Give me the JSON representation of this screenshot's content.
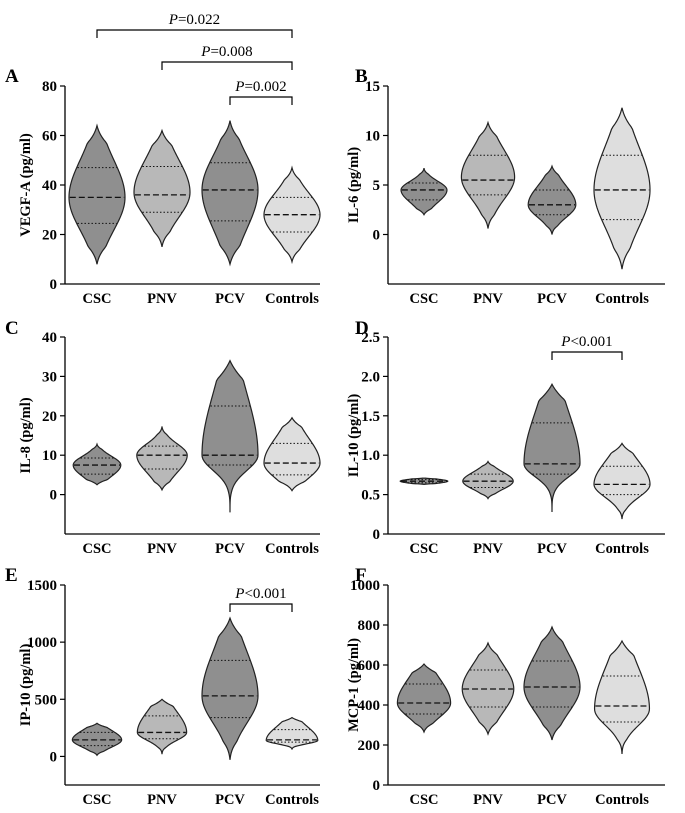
{
  "colors": {
    "CSC": "#8f8f8f",
    "PNV": "#b8b8b8",
    "PCV": "#8f8f8f",
    "Controls": "#dedede"
  },
  "chart_data": [
    {
      "type": "violin",
      "panel": "A",
      "ylabel": "VEGF-A (pg/ml)",
      "ylim": [
        0,
        80
      ],
      "yticks": [
        0,
        20,
        40,
        60,
        80
      ],
      "yticklabels": [
        "0",
        "20",
        "40",
        "60",
        "80"
      ],
      "categories": [
        "CSC",
        "PNV",
        "PCV",
        "Controls"
      ],
      "groups": [
        {
          "name": "CSC",
          "min": 8,
          "max": 64,
          "q1": 24.5,
          "median": 35,
          "q3": 47,
          "mode": 35,
          "width": 1.0
        },
        {
          "name": "PNV",
          "min": 15,
          "max": 62,
          "q1": 29,
          "median": 36,
          "q3": 47.5,
          "mode": 37,
          "width": 1.0
        },
        {
          "name": "PCV",
          "min": 8,
          "max": 66,
          "q1": 25.5,
          "median": 38,
          "q3": 49,
          "mode": 38,
          "width": 1.0
        },
        {
          "name": "Controls",
          "min": 9,
          "max": 47,
          "q1": 21,
          "median": 28,
          "q3": 35,
          "mode": 28,
          "width": 1.0
        }
      ],
      "annotations": [
        {
          "label_italic": "P",
          "label_rest": "=0.022",
          "from": 0,
          "to": 3,
          "level": 0
        },
        {
          "label_italic": "P",
          "label_rest": "=0.008",
          "from": 1,
          "to": 3,
          "level": 1
        },
        {
          "label_italic": "P",
          "label_rest": "=0.002",
          "from": 2,
          "to": 3,
          "level": 2
        }
      ]
    },
    {
      "type": "violin",
      "panel": "B",
      "ylabel": "IL-6 (pg/ml)",
      "ylim": [
        -5,
        15
      ],
      "yticks": [
        0,
        5,
        10,
        15
      ],
      "yticklabels": [
        "0",
        "5",
        "10",
        "15"
      ],
      "categories": [
        "CSC",
        "PNV",
        "PCV",
        "Controls"
      ],
      "groups": [
        {
          "name": "CSC",
          "min": 2,
          "max": 6.7,
          "q1": 3.5,
          "median": 4.5,
          "q3": 5.2,
          "mode": 4.5,
          "width": 0.82
        },
        {
          "name": "PNV",
          "min": 0.6,
          "max": 11.3,
          "q1": 4,
          "median": 5.5,
          "q3": 8,
          "mode": 5.8,
          "width": 0.95
        },
        {
          "name": "PCV",
          "min": 0,
          "max": 6.9,
          "q1": 2,
          "median": 3,
          "q3": 4.5,
          "mode": 3,
          "width": 0.85
        },
        {
          "name": "Controls",
          "min": -3.5,
          "max": 12.8,
          "q1": 1.5,
          "median": 4.5,
          "q3": 8,
          "mode": 4.5,
          "width": 1.0
        }
      ],
      "annotations": []
    },
    {
      "type": "violin",
      "panel": "C",
      "ylabel": "IL-8 (pg/ml)",
      "ylim": [
        -10,
        40
      ],
      "yticks": [
        0,
        10,
        20,
        30,
        40
      ],
      "yticklabels": [
        "0",
        "10",
        "20",
        "30",
        "40"
      ],
      "categories": [
        "CSC",
        "PNV",
        "PCV",
        "Controls"
      ],
      "groups": [
        {
          "name": "CSC",
          "min": 2.5,
          "max": 12.8,
          "q1": 5.2,
          "median": 7.5,
          "q3": 9.3,
          "mode": 7.5,
          "width": 0.85
        },
        {
          "name": "PNV",
          "min": 1.2,
          "max": 17.3,
          "q1": 6.5,
          "median": 10,
          "q3": 12.3,
          "mode": 10,
          "width": 0.9
        },
        {
          "name": "PCV",
          "min": -4.5,
          "max": 34,
          "q1": 7.5,
          "median": 10,
          "q3": 22.5,
          "mode": 10,
          "width": 1.0
        },
        {
          "name": "Controls",
          "min": 1,
          "max": 19.5,
          "q1": 5,
          "median": 8,
          "q3": 13,
          "mode": 8,
          "width": 1.0
        }
      ],
      "annotations": []
    },
    {
      "type": "violin",
      "panel": "D",
      "ylabel": "IL-10 (pg/ml)",
      "ylim": [
        0,
        2.5
      ],
      "yticks": [
        0,
        0.5,
        1.0,
        1.5,
        2.0,
        2.5
      ],
      "yticklabels": [
        "0",
        "0.5",
        "1.0",
        "1.5",
        "2.0",
        "2.5"
      ],
      "categories": [
        "CSC",
        "PNV",
        "PCV",
        "Controls"
      ],
      "groups": [
        {
          "name": "CSC",
          "min": 0.63,
          "max": 0.71,
          "q1": 0.65,
          "median": 0.67,
          "q3": 0.69,
          "mode": 0.67,
          "width": 0.85
        },
        {
          "name": "PNV",
          "min": 0.45,
          "max": 0.92,
          "q1": 0.59,
          "median": 0.67,
          "q3": 0.76,
          "mode": 0.67,
          "width": 0.9
        },
        {
          "name": "PCV",
          "min": 0.28,
          "max": 1.9,
          "q1": 0.76,
          "median": 0.89,
          "q3": 1.41,
          "mode": 0.89,
          "width": 1.0
        },
        {
          "name": "Controls",
          "min": 0.19,
          "max": 1.15,
          "q1": 0.5,
          "median": 0.63,
          "q3": 0.86,
          "mode": 0.63,
          "width": 1.0
        }
      ],
      "annotations": [
        {
          "label_italic": "P",
          "label_rest": "<0.001",
          "from": 2,
          "to": 3,
          "level": 0
        }
      ]
    },
    {
      "type": "violin",
      "panel": "E",
      "ylabel": "IP-10 (pg/ml)",
      "ylim": [
        -250,
        1500
      ],
      "yticks": [
        0,
        500,
        1000,
        1500
      ],
      "yticklabels": [
        "0",
        "500",
        "1000",
        "1500"
      ],
      "categories": [
        "CSC",
        "PNV",
        "PCV",
        "Controls"
      ],
      "groups": [
        {
          "name": "CSC",
          "min": 10,
          "max": 290,
          "q1": 95,
          "median": 145,
          "q3": 210,
          "mode": 145,
          "width": 0.88
        },
        {
          "name": "PNV",
          "min": 20,
          "max": 500,
          "q1": 155,
          "median": 210,
          "q3": 355,
          "mode": 210,
          "width": 0.88
        },
        {
          "name": "PCV",
          "min": -30,
          "max": 1210,
          "q1": 340,
          "median": 530,
          "q3": 840,
          "mode": 530,
          "width": 1.0
        },
        {
          "name": "Controls",
          "min": 60,
          "max": 340,
          "q1": 125,
          "median": 145,
          "q3": 235,
          "mode": 140,
          "width": 0.92
        }
      ],
      "annotations": [
        {
          "label_italic": "P",
          "label_rest": "<0.001",
          "from": 2,
          "to": 3,
          "level": 0
        }
      ]
    },
    {
      "type": "violin",
      "panel": "F",
      "ylabel": "MCP-1 (pg/ml)",
      "ylim": [
        0,
        1000
      ],
      "yticks": [
        0,
        200,
        400,
        600,
        800,
        1000
      ],
      "yticklabels": [
        "0",
        "200",
        "400",
        "600",
        "800",
        "1000"
      ],
      "categories": [
        "CSC",
        "PNV",
        "PCV",
        "Controls"
      ],
      "groups": [
        {
          "name": "CSC",
          "min": 265,
          "max": 605,
          "q1": 355,
          "median": 410,
          "q3": 505,
          "mode": 410,
          "width": 0.95
        },
        {
          "name": "PNV",
          "min": 255,
          "max": 710,
          "q1": 390,
          "median": 480,
          "q3": 575,
          "mode": 480,
          "width": 0.92
        },
        {
          "name": "PCV",
          "min": 225,
          "max": 790,
          "q1": 390,
          "median": 490,
          "q3": 620,
          "mode": 490,
          "width": 1.0
        },
        {
          "name": "Controls",
          "min": 155,
          "max": 720,
          "q1": 315,
          "median": 395,
          "q3": 545,
          "mode": 380,
          "width": 0.98
        }
      ],
      "annotations": []
    }
  ]
}
